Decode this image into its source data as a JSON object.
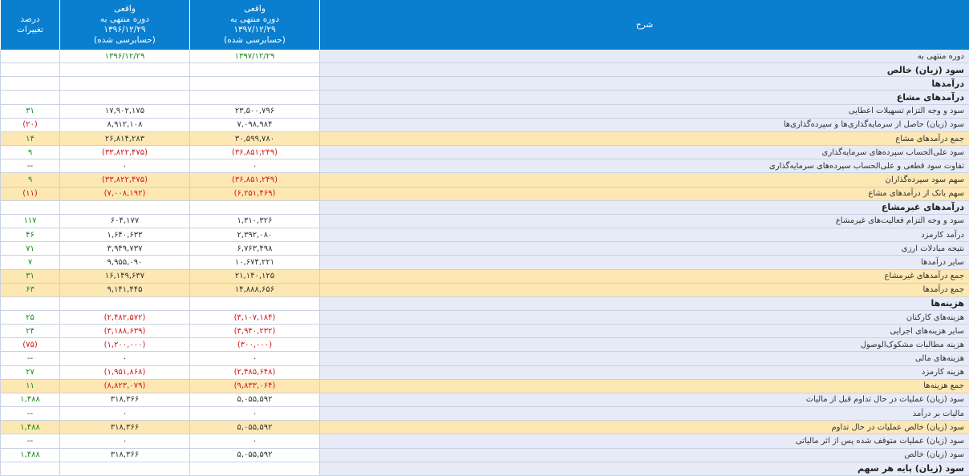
{
  "header": {
    "columns": [
      [
        "شرح"
      ],
      [
        "واقعی",
        "دوره منتهی به",
        "۱۳۹۷/۱۲/۲۹",
        "(حسابرسی شده)"
      ],
      [
        "واقعی",
        "دوره منتهی به",
        "۱۳۹۶/۱۲/۲۹",
        "(حسابرسی شده)"
      ],
      [
        "درصد",
        "تغییرات"
      ]
    ]
  },
  "table": {
    "rows": [
      [
        "دوره منتهی به",
        "۱۳۹۷/۱۲/۲۹",
        "۱۳۹۶/۱۲/۲۹"
      ],
      [
        "سود (زیان) خالص"
      ],
      [
        "درآمدها"
      ],
      [
        "درآمدهای مشاع"
      ],
      [
        "سود و وجه التزام تسهیلات اعطایی",
        "۲۳,۵۰۰,۷۹۶",
        "۱۷,۹۰۲,۱۷۵",
        "۳۱"
      ],
      [
        "سود (زیان) حاصل از سرمایه‌گذاری‌ها و سپرده‌گذاری‌ها",
        "۷,۰۹۸,۹۸۴",
        "۸,۹۱۲,۱۰۸",
        "(۲۰)"
      ],
      [
        "جمع درآمدهای مشاع",
        "۳۰,۵۹۹,۷۸۰",
        "۲۶,۸۱۴,۲۸۳",
        "۱۴"
      ],
      [
        "سود علی‌الحساب سپرده‌های سرمایه‌گذاری",
        "(۳۶,۸۵۱,۲۴۹)",
        "(۳۳,۸۲۲,۴۷۵)",
        "۹"
      ],
      [
        "تفاوت سود قطعی و علی‌الحساب سپرده‌های سرمایه‌گذاری",
        "۰",
        "۰",
        "--"
      ],
      [
        "سهم سود سپرده‌گذاران",
        "(۳۶,۸۵۱,۲۴۹)",
        "(۳۳,۸۲۲,۴۷۵)",
        "۹"
      ],
      [
        "سهم بانک از درآمدهای مشاع",
        "(۶,۲۵۱,۴۶۹)",
        "(۷,۰۰۸,۱۹۲)",
        "(۱۱)"
      ],
      [
        "درآمدهای غیرمشاع"
      ],
      [
        "سود و وجه التزام فعالیت‌های غیرمشاع",
        "۱,۳۱۰,۳۲۶",
        "۶۰۴,۱۷۷",
        "۱۱۷"
      ],
      [
        "درآمد کارمزد",
        "۲,۳۹۲,۰۸۰",
        "۱,۶۴۰,۶۳۳",
        "۴۶"
      ],
      [
        "نتیجه مبادلات ارزی",
        "۶,۷۶۳,۴۹۸",
        "۳,۹۴۹,۷۳۷",
        "۷۱"
      ],
      [
        "سایر درآمدها",
        "۱۰,۶۷۴,۲۲۱",
        "۹,۹۵۵,۰۹۰",
        "۷"
      ],
      [
        "جمع درآمدهای غیرمشاع",
        "۲۱,۱۴۰,۱۲۵",
        "۱۶,۱۴۹,۶۳۷",
        "۳۱"
      ],
      [
        "جمع درآمدها",
        "۱۴,۸۸۸,۶۵۶",
        "۹,۱۴۱,۴۴۵",
        "۶۳"
      ],
      [
        "هزینه‌ها"
      ],
      [
        "هزینه‌های کارکنان",
        "(۳,۱۰۷,۱۸۴)",
        "(۲,۴۸۲,۵۷۲)",
        "۲۵"
      ],
      [
        "سایر هزینه‌های اجرایی",
        "(۳,۹۴۰,۲۳۲)",
        "(۳,۱۸۸,۶۳۹)",
        "۲۴"
      ],
      [
        "هزینه مطالبات مشکوک‌الوصول",
        "(۳۰۰,۰۰۰)",
        "(۱,۲۰۰,۰۰۰)",
        "(۷۵)"
      ],
      [
        "هزینه‌های مالی",
        "۰",
        "۰",
        "--"
      ],
      [
        "هزینه کارمزد",
        "(۲,۴۸۵,۶۴۸)",
        "(۱,۹۵۱,۸۶۸)",
        "۲۷"
      ],
      [
        "جمع هزینه‌ها",
        "(۹,۸۳۳,۰۶۴)",
        "(۸,۸۲۳,۰۷۹)",
        "۱۱"
      ],
      [
        "سود (زیان) عملیات در حال تداوم قبل از مالیات",
        "۵,۰۵۵,۵۹۲",
        "۳۱۸,۳۶۶",
        "۱,۴۸۸"
      ],
      [
        "مالیات بر درآمد",
        "۰",
        "۰",
        "--"
      ],
      [
        "سود (زیان) خالص عملیات در حال تداوم",
        "۵,۰۵۵,۵۹۲",
        "۳۱۸,۳۶۶",
        "۱,۴۸۸"
      ],
      [
        "سود (زیان) عملیات متوقف شده پس از اثر مالیاتی",
        "۰",
        "۰",
        "--"
      ],
      [
        "سود (زیان) خالص",
        "۵,۰۵۵,۵۹۲",
        "۳۱۸,۳۶۶",
        "۱,۴۸۸"
      ],
      [
        "سود (زیان) پایه هر سهم"
      ]
    ]
  }
}
